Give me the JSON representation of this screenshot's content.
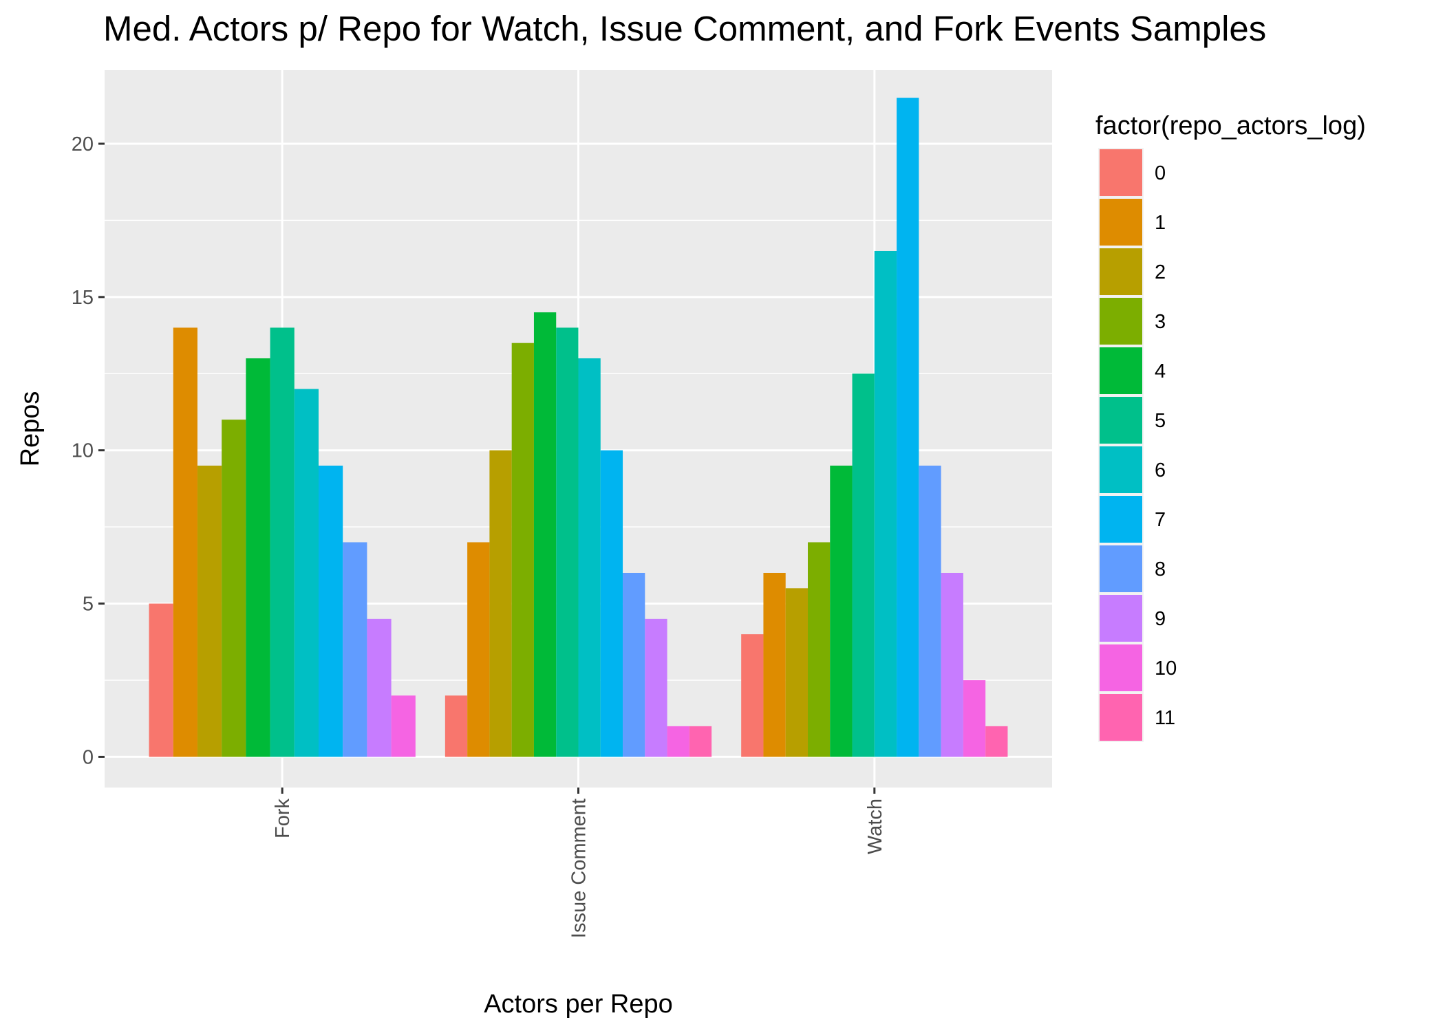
{
  "chart_data": {
    "type": "bar",
    "title": "Med. Actors p/ Repo for Watch, Issue Comment, and Fork Events Samples",
    "xlabel": "Actors per Repo",
    "ylabel": "Repos",
    "categories": [
      "Fork",
      "Issue Comment",
      "Watch"
    ],
    "ylim": [
      -1,
      22.4
    ],
    "yticks": [
      0,
      5,
      10,
      15,
      20
    ],
    "grid": true,
    "legend_title": "factor(repo_actors_log)",
    "legend_position": "right",
    "series": [
      {
        "name": "0",
        "color": "#F8766D",
        "values": [
          5,
          2,
          4
        ]
      },
      {
        "name": "1",
        "color": "#DE8C00",
        "values": [
          14,
          7,
          6
        ]
      },
      {
        "name": "2",
        "color": "#B79F00",
        "values": [
          9.5,
          10,
          5.5
        ]
      },
      {
        "name": "3",
        "color": "#7CAE00",
        "values": [
          11,
          13.5,
          7
        ]
      },
      {
        "name": "4",
        "color": "#00BA38",
        "values": [
          13,
          14.5,
          9.5
        ]
      },
      {
        "name": "5",
        "color": "#00C08B",
        "values": [
          14,
          14,
          12.5
        ]
      },
      {
        "name": "6",
        "color": "#00BFC4",
        "values": [
          12,
          13,
          16.5
        ]
      },
      {
        "name": "7",
        "color": "#00B4F0",
        "values": [
          9.5,
          10,
          21.5
        ]
      },
      {
        "name": "8",
        "color": "#619CFF",
        "values": [
          7,
          6,
          9.5
        ]
      },
      {
        "name": "9",
        "color": "#C77CFF",
        "values": [
          4.5,
          4.5,
          6
        ]
      },
      {
        "name": "10",
        "color": "#F564E3",
        "values": [
          2,
          1,
          2.5
        ]
      },
      {
        "name": "11",
        "color": "#FF64B0",
        "values": [
          null,
          1,
          1
        ]
      }
    ]
  }
}
